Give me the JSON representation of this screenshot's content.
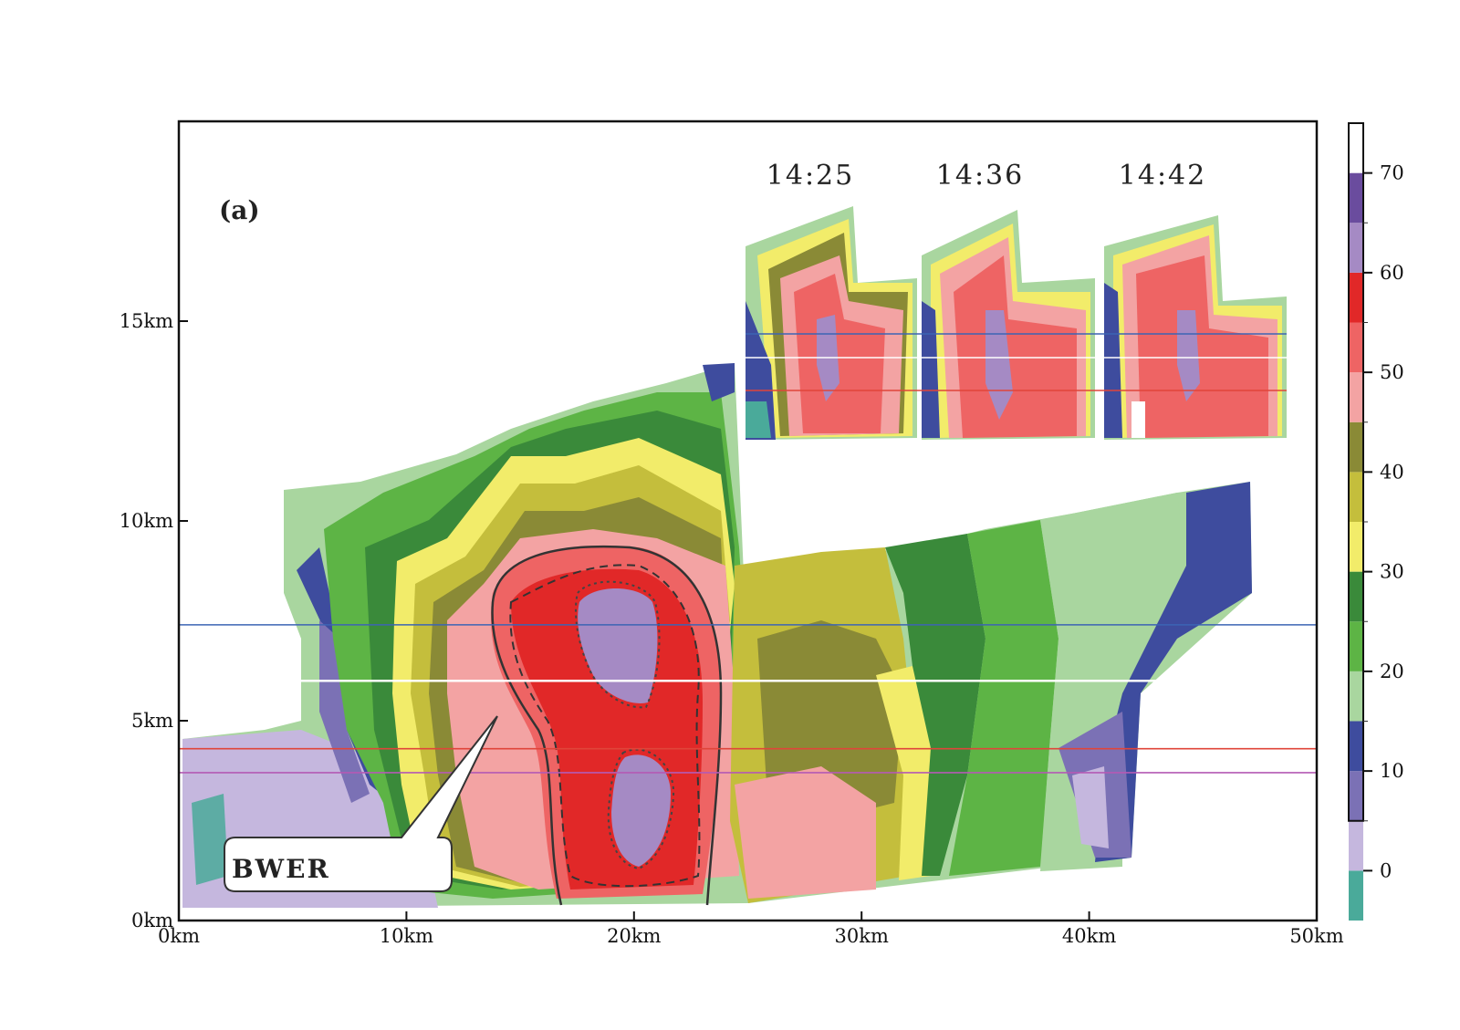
{
  "panel_label": "(a)",
  "annotation": "BWER",
  "times": [
    "14:25",
    "14:36",
    "14:42"
  ],
  "colors": {
    "reflectivity": [
      "#4aaa9a",
      "#c5b7de",
      "#7b71b5",
      "#3e4c9e",
      "#a9d69f",
      "#5db445",
      "#3a8a3a",
      "#f2ec6a",
      "#c4be3c",
      "#8a8a36",
      "#f3a3a3",
      "#ee6464",
      "#e12828",
      "#a58ac4",
      "#6a4c9e",
      "#ffffff"
    ],
    "line_blue": "#3c64b4",
    "line_white": "#ffffff",
    "line_red": "#e0453a",
    "line_purple": "#b45ab4"
  },
  "chart_data": {
    "type": "heatmap",
    "xlim": [
      0,
      50
    ],
    "ylim": [
      0,
      20
    ],
    "x_ticks": [
      0,
      10,
      20,
      30,
      40,
      50
    ],
    "x_tick_labels": [
      "0km",
      "10km",
      "20km",
      "30km",
      "40km",
      "50km"
    ],
    "y_ticks": [
      0,
      5,
      10,
      15
    ],
    "y_tick_labels": [
      "0km",
      "5km",
      "10km",
      "15km"
    ],
    "colorbar": {
      "bounds": [
        -5,
        0,
        5,
        10,
        15,
        20,
        25,
        30,
        35,
        40,
        45,
        50,
        55,
        60,
        65,
        70,
        75
      ],
      "tick_values": [
        0,
        10,
        20,
        30,
        40,
        50,
        60,
        70
      ],
      "tick_labels": [
        "0",
        "10",
        "20",
        "30",
        "40",
        "50",
        "60",
        "70"
      ]
    },
    "horizontal_lines_km": [
      {
        "y": 7.4,
        "color": "blue"
      },
      {
        "y": 6.0,
        "color": "white"
      },
      {
        "y": 4.3,
        "color": "red"
      },
      {
        "y": 3.7,
        "color": "purple"
      }
    ]
  }
}
